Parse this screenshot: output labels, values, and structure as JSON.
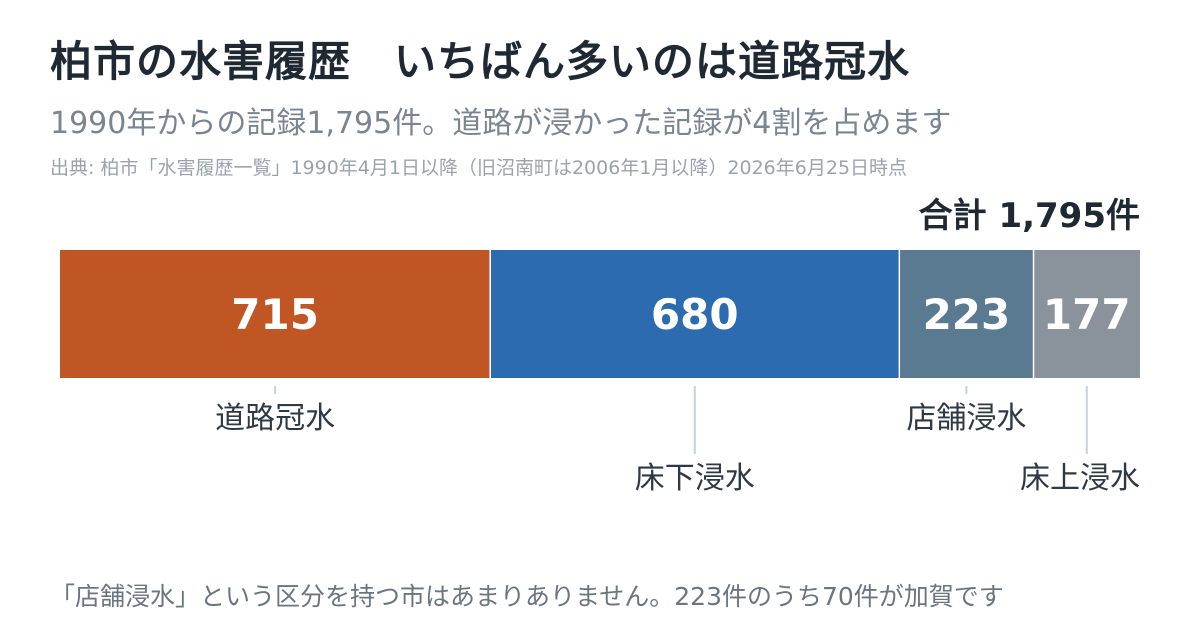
{
  "header": {
    "title": "柏市の水害履歴　いちばん多いのは道路冠水",
    "subtitle": "1990年からの記録1,795件。道路が浸かった記録が4割を占めます",
    "source": "出典: 柏市「水害履歴一覧」1990年4月1日以降（旧沼南町は2006年1月以降）2026年6月25日時点",
    "total": "合計 1,795件"
  },
  "footnote": "「店舗浸水」という区分を持つ市はあまりありません。223件のうち70件が加賀です",
  "chart_data": {
    "type": "bar",
    "orientation": "horizontal-stacked",
    "categories": [
      "道路冠水",
      "床下浸水",
      "店舗浸水",
      "床上浸水"
    ],
    "values": [
      715,
      680,
      223,
      177
    ],
    "colors": [
      "#bf5623",
      "#2d6bb0",
      "#5a7a91",
      "#8a939c"
    ],
    "label_rows": [
      0,
      1,
      0,
      1
    ],
    "total": 1795,
    "xlim": [
      0,
      1795
    ],
    "grid": false,
    "legend": "none"
  }
}
